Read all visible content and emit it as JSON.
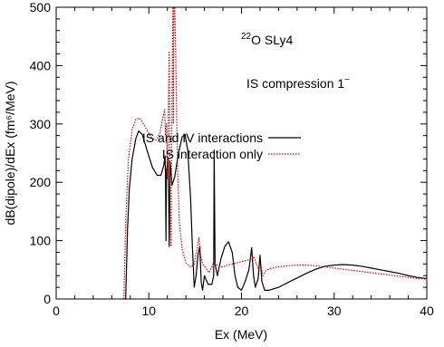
{
  "chart_data": {
    "type": "line",
    "xlabel": "Ex (MeV)",
    "ylabel": "dB(dipole)/dEx (fm⁶/MeV)",
    "xlim": [
      0,
      40
    ],
    "ylim": [
      0,
      500
    ],
    "xticks": [
      0,
      10,
      20,
      30,
      40
    ],
    "yticks": [
      0,
      100,
      200,
      300,
      400,
      500
    ],
    "grid": false,
    "legend_position": "right",
    "annotations": {
      "nucleus_mass": "22",
      "nucleus_label": "O  SLy4",
      "mode_label": "IS compression 1",
      "mode_sup": "−"
    },
    "series": [
      {
        "name": "IS and IV interactions",
        "color": "#000000",
        "dash": "solid",
        "points": [
          [
            7.5,
            0
          ],
          [
            7.7,
            120
          ],
          [
            7.9,
            190
          ],
          [
            8.2,
            240
          ],
          [
            8.6,
            275
          ],
          [
            8.9,
            288
          ],
          [
            9.3,
            282
          ],
          [
            9.8,
            255
          ],
          [
            10.4,
            225
          ],
          [
            10.9,
            212
          ],
          [
            11.3,
            212
          ],
          [
            11.6,
            228
          ],
          [
            11.75,
            245
          ],
          [
            11.8,
            210
          ],
          [
            11.85,
            100
          ],
          [
            11.9,
            220
          ],
          [
            12.1,
            240
          ],
          [
            12.2,
            90
          ],
          [
            12.3,
            235
          ],
          [
            12.5,
            195
          ],
          [
            12.8,
            210
          ],
          [
            13.2,
            250
          ],
          [
            13.6,
            278
          ],
          [
            13.9,
            282
          ],
          [
            14.2,
            255
          ],
          [
            14.5,
            175
          ],
          [
            14.7,
            90
          ],
          [
            14.9,
            20
          ],
          [
            15.1,
            40
          ],
          [
            15.3,
            75
          ],
          [
            15.5,
            90
          ],
          [
            15.65,
            30
          ],
          [
            15.8,
            15
          ],
          [
            16.0,
            40
          ],
          [
            16.4,
            25
          ],
          [
            16.8,
            25
          ],
          [
            17.0,
            40
          ],
          [
            17.05,
            255
          ],
          [
            17.15,
            60
          ],
          [
            17.4,
            40
          ],
          [
            17.8,
            70
          ],
          [
            18.2,
            90
          ],
          [
            18.6,
            98
          ],
          [
            19.0,
            80
          ],
          [
            19.3,
            40
          ],
          [
            19.6,
            20
          ],
          [
            20.0,
            15
          ],
          [
            20.4,
            30
          ],
          [
            20.8,
            50
          ],
          [
            21.1,
            88
          ],
          [
            21.3,
            40
          ],
          [
            21.5,
            20
          ],
          [
            21.8,
            35
          ],
          [
            22.0,
            75
          ],
          [
            22.2,
            30
          ],
          [
            22.5,
            15
          ],
          [
            23.0,
            15
          ],
          [
            24.0,
            20
          ],
          [
            25.0,
            28
          ],
          [
            26.0,
            36
          ],
          [
            27.0,
            44
          ],
          [
            28.0,
            51
          ],
          [
            29.0,
            56
          ],
          [
            30.0,
            58
          ],
          [
            31.0,
            59
          ],
          [
            32.0,
            58
          ],
          [
            33.0,
            56
          ],
          [
            34.0,
            53
          ],
          [
            35.0,
            50
          ],
          [
            36.0,
            47
          ],
          [
            37.0,
            44
          ],
          [
            38.0,
            40
          ],
          [
            39.0,
            37
          ],
          [
            40.0,
            35
          ]
        ]
      },
      {
        "name": "IS interaction only",
        "color": "#d40000",
        "dash": "dotted",
        "points": [
          [
            7.3,
            0
          ],
          [
            7.5,
            130
          ],
          [
            7.8,
            240
          ],
          [
            8.2,
            290
          ],
          [
            8.6,
            308
          ],
          [
            9.0,
            310
          ],
          [
            9.5,
            298
          ],
          [
            10.2,
            278
          ],
          [
            10.8,
            272
          ],
          [
            11.2,
            285
          ],
          [
            11.5,
            310
          ],
          [
            11.7,
            325
          ],
          [
            11.8,
            280
          ],
          [
            11.9,
            300
          ],
          [
            12.0,
            205
          ],
          [
            12.1,
            320
          ],
          [
            12.2,
            425
          ],
          [
            12.3,
            150
          ],
          [
            12.4,
            90
          ],
          [
            12.5,
            350
          ],
          [
            12.6,
            500
          ],
          [
            12.65,
            300
          ],
          [
            12.7,
            500
          ],
          [
            12.8,
            500
          ],
          [
            12.9,
            420
          ],
          [
            13.0,
            320
          ],
          [
            13.1,
            225
          ],
          [
            13.3,
            130
          ],
          [
            13.6,
            85
          ],
          [
            14.0,
            62
          ],
          [
            14.5,
            55
          ],
          [
            14.9,
            60
          ],
          [
            15.2,
            85
          ],
          [
            15.4,
            105
          ],
          [
            15.6,
            75
          ],
          [
            15.8,
            60
          ],
          [
            16.2,
            52
          ],
          [
            16.5,
            45
          ],
          [
            16.8,
            55
          ],
          [
            17.0,
            65
          ],
          [
            17.2,
            60
          ],
          [
            17.6,
            56
          ],
          [
            18.0,
            55
          ],
          [
            18.5,
            58
          ],
          [
            19.0,
            60
          ],
          [
            19.5,
            62
          ],
          [
            20.0,
            64
          ],
          [
            20.5,
            66
          ],
          [
            21.0,
            68
          ],
          [
            21.3,
            73
          ],
          [
            21.6,
            60
          ],
          [
            21.8,
            52
          ],
          [
            22.1,
            58
          ],
          [
            22.3,
            40
          ],
          [
            22.6,
            48
          ],
          [
            23.0,
            52
          ],
          [
            24.0,
            55
          ],
          [
            25.0,
            57
          ],
          [
            26.0,
            58
          ],
          [
            27.0,
            58
          ],
          [
            28.0,
            57
          ],
          [
            29.0,
            55
          ],
          [
            30.0,
            53
          ],
          [
            31.0,
            51
          ],
          [
            32.0,
            49
          ],
          [
            33.0,
            47
          ],
          [
            34.0,
            45
          ],
          [
            35.0,
            43
          ],
          [
            36.0,
            41
          ],
          [
            37.0,
            39
          ],
          [
            38.0,
            37
          ],
          [
            39.0,
            35
          ],
          [
            40.0,
            34
          ]
        ]
      }
    ]
  }
}
